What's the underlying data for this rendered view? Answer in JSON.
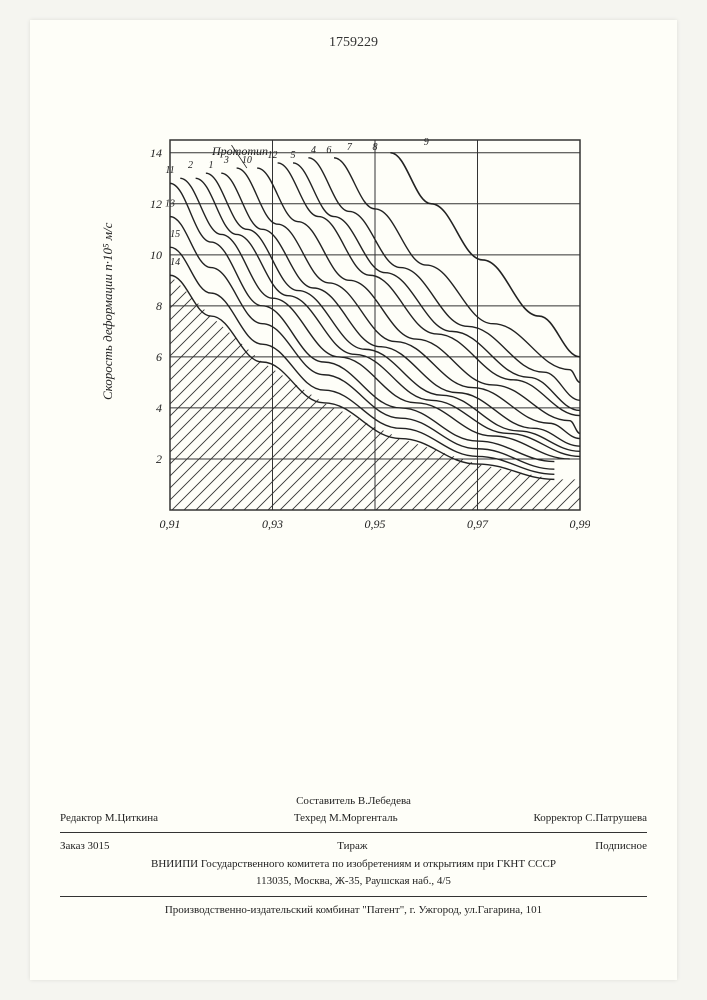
{
  "patent_number": "1759229",
  "chart": {
    "type": "line",
    "y_label": "Скорость деформации n·10⁵ м/с",
    "x_ticks": [
      "0,91",
      "0,93",
      "0,95",
      "0,97",
      "0,99"
    ],
    "y_ticks": [
      "2",
      "4",
      "6",
      "8",
      "10",
      "12",
      "14"
    ],
    "xlim": [
      0.91,
      0.99
    ],
    "ylim": [
      0,
      14.5
    ],
    "annotation": "Прототип",
    "curve_labels": [
      "1",
      "2",
      "3",
      "4",
      "5",
      "6",
      "7",
      "8",
      "9",
      "10",
      "11",
      "12",
      "13",
      "14",
      "15"
    ],
    "curves": [
      {
        "label": "11",
        "color": "#222",
        "width": 1.4,
        "points": [
          [
            0.91,
            12.8
          ],
          [
            0.918,
            10.5
          ],
          [
            0.928,
            8.0
          ],
          [
            0.94,
            5.8
          ],
          [
            0.955,
            4.0
          ],
          [
            0.97,
            2.7
          ],
          [
            0.985,
            1.9
          ]
        ]
      },
      {
        "label": "2",
        "color": "#222",
        "width": 1.4,
        "points": [
          [
            0.912,
            13.0
          ],
          [
            0.92,
            10.8
          ],
          [
            0.93,
            8.3
          ],
          [
            0.943,
            6.0
          ],
          [
            0.958,
            4.2
          ],
          [
            0.973,
            2.9
          ],
          [
            0.988,
            2.0
          ]
        ]
      },
      {
        "label": "1",
        "color": "#222",
        "width": 1.4,
        "points": [
          [
            0.915,
            13.0
          ],
          [
            0.923,
            10.8
          ],
          [
            0.933,
            8.4
          ],
          [
            0.946,
            6.1
          ],
          [
            0.961,
            4.3
          ],
          [
            0.976,
            3.0
          ],
          [
            0.99,
            2.1
          ]
        ]
      },
      {
        "label": "3",
        "color": "#222",
        "width": 1.4,
        "points": [
          [
            0.917,
            13.2
          ],
          [
            0.925,
            11.0
          ],
          [
            0.935,
            8.6
          ],
          [
            0.948,
            6.3
          ],
          [
            0.963,
            4.5
          ],
          [
            0.978,
            3.1
          ],
          [
            0.99,
            2.3
          ]
        ]
      },
      {
        "label": "10",
        "color": "#222",
        "width": 1.4,
        "points": [
          [
            0.92,
            13.2
          ],
          [
            0.928,
            11.0
          ],
          [
            0.938,
            8.7
          ],
          [
            0.951,
            6.4
          ],
          [
            0.966,
            4.6
          ],
          [
            0.981,
            3.2
          ],
          [
            0.99,
            2.5
          ]
        ]
      },
      {
        "label": "12",
        "color": "#222",
        "width": 1.4,
        "points": [
          [
            0.923,
            13.4
          ],
          [
            0.931,
            11.2
          ],
          [
            0.941,
            8.9
          ],
          [
            0.954,
            6.6
          ],
          [
            0.969,
            4.8
          ],
          [
            0.984,
            3.4
          ],
          [
            0.99,
            2.8
          ]
        ]
      },
      {
        "label": "5",
        "color": "#222",
        "width": 1.4,
        "points": [
          [
            0.927,
            13.4
          ],
          [
            0.935,
            11.3
          ],
          [
            0.945,
            9.0
          ],
          [
            0.958,
            6.7
          ],
          [
            0.973,
            4.9
          ],
          [
            0.988,
            3.5
          ],
          [
            0.99,
            3.0
          ]
        ]
      },
      {
        "label": "4",
        "color": "#222",
        "width": 1.4,
        "points": [
          [
            0.931,
            13.6
          ],
          [
            0.939,
            11.5
          ],
          [
            0.949,
            9.2
          ],
          [
            0.962,
            6.9
          ],
          [
            0.977,
            5.1
          ],
          [
            0.99,
            3.7
          ]
        ]
      },
      {
        "label": "6",
        "color": "#222",
        "width": 1.4,
        "points": [
          [
            0.934,
            13.6
          ],
          [
            0.942,
            11.5
          ],
          [
            0.952,
            9.3
          ],
          [
            0.965,
            7.0
          ],
          [
            0.98,
            5.2
          ],
          [
            0.99,
            3.9
          ]
        ]
      },
      {
        "label": "7",
        "color": "#222",
        "width": 1.4,
        "points": [
          [
            0.937,
            13.8
          ],
          [
            0.945,
            11.7
          ],
          [
            0.955,
            9.5
          ],
          [
            0.968,
            7.2
          ],
          [
            0.983,
            5.4
          ],
          [
            0.99,
            4.3
          ]
        ]
      },
      {
        "label": "8",
        "color": "#222",
        "width": 1.4,
        "points": [
          [
            0.942,
            13.8
          ],
          [
            0.95,
            11.8
          ],
          [
            0.96,
            9.6
          ],
          [
            0.973,
            7.3
          ],
          [
            0.988,
            5.5
          ],
          [
            0.99,
            5.0
          ]
        ]
      },
      {
        "label": "9",
        "color": "#222",
        "width": 1.6,
        "points": [
          [
            0.953,
            14.0
          ],
          [
            0.961,
            12.0
          ],
          [
            0.971,
            9.8
          ],
          [
            0.982,
            7.6
          ],
          [
            0.99,
            6.0
          ]
        ]
      },
      {
        "label": "13",
        "color": "#222",
        "width": 1.4,
        "points": [
          [
            0.91,
            11.5
          ],
          [
            0.918,
            9.5
          ],
          [
            0.928,
            7.3
          ],
          [
            0.94,
            5.3
          ],
          [
            0.955,
            3.6
          ],
          [
            0.97,
            2.4
          ],
          [
            0.985,
            1.6
          ]
        ]
      },
      {
        "label": "15",
        "color": "#222",
        "width": 1.4,
        "points": [
          [
            0.91,
            10.3
          ],
          [
            0.918,
            8.5
          ],
          [
            0.928,
            6.5
          ],
          [
            0.94,
            4.7
          ],
          [
            0.955,
            3.2
          ],
          [
            0.97,
            2.1
          ],
          [
            0.985,
            1.4
          ]
        ]
      },
      {
        "label": "14",
        "color": "#222",
        "width": 1.4,
        "points": [
          [
            0.91,
            9.2
          ],
          [
            0.918,
            7.6
          ],
          [
            0.928,
            5.8
          ],
          [
            0.94,
            4.2
          ],
          [
            0.955,
            2.8
          ],
          [
            0.97,
            1.8
          ],
          [
            0.985,
            1.2
          ]
        ]
      }
    ],
    "hatched_region": {
      "color": "#333",
      "spacing": 12,
      "angle": 45
    },
    "grid_color": "#333",
    "background_color": "#fefef8",
    "axis_width": 1.5
  },
  "footer": {
    "compiler": "Составитель  В.Лебедева",
    "editor": "Редактор  М.Циткина",
    "techred": "Техред М.Моргенталь",
    "corrector": "Корректор  С.Патрушева",
    "order": "Заказ  3015",
    "tirage": "Тираж",
    "subscription": "Подписное",
    "institute": "ВНИИПИ Государственного комитета по изобретениям и открытиям при ГКНТ СССР",
    "address": "113035, Москва, Ж-35, Раушская наб., 4/5",
    "publisher": "Производственно-издательский комбинат \"Патент\", г. Ужгород, ул.Гагарина, 101"
  }
}
